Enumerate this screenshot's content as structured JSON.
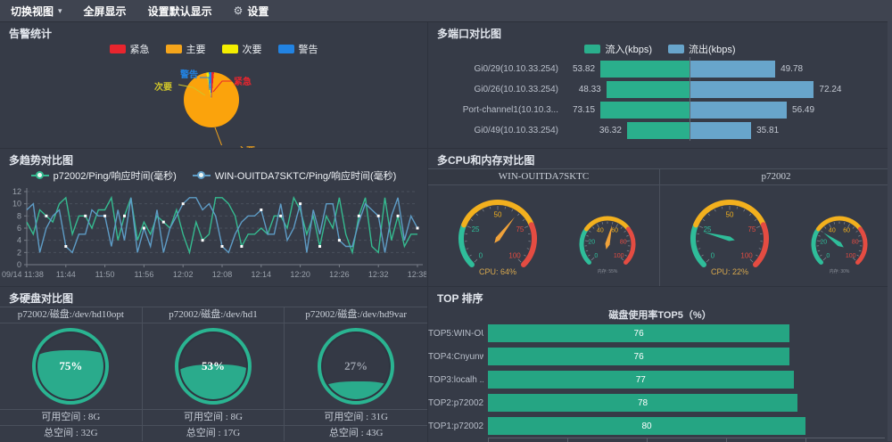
{
  "toolbar": {
    "items": [
      {
        "label": "切换视图",
        "has_caret": true
      },
      {
        "label": "全屏显示"
      },
      {
        "label": "设置默认显示"
      },
      {
        "label": "设置",
        "icon": "gear"
      }
    ]
  },
  "alarm": {
    "title": "告警统计",
    "legend": [
      {
        "label": "紧急",
        "color": "#e9252e"
      },
      {
        "label": "主要",
        "color": "#f5a51b"
      },
      {
        "label": "次要",
        "color": "#f4ee00"
      },
      {
        "label": "警告",
        "color": "#2283e2"
      }
    ],
    "chart_data": {
      "type": "pie",
      "slices": [
        {
          "label": "紧急",
          "color": "#e9252e",
          "pct": 1.5
        },
        {
          "label": "主要",
          "color": "#fba30c",
          "pct": 95.5
        },
        {
          "label": "次要",
          "color": "#f4ee00",
          "pct": 1.5
        },
        {
          "label": "警告",
          "color": "#2283e2",
          "pct": 1.5
        }
      ]
    }
  },
  "ports": {
    "title": "多端口对比图",
    "legend": [
      {
        "label": "流入(kbps)",
        "color": "#2aaf8c"
      },
      {
        "label": "流出(kbps)",
        "color": "#68a5cb"
      }
    ],
    "chart_data": {
      "type": "bar",
      "orientation": "bidirectional-horizontal",
      "series_names": [
        "流入(kbps)",
        "流出(kbps)"
      ],
      "rows": [
        {
          "label": "Gi0/29(10.10.33.254)",
          "in": 53.82,
          "out": 49.78
        },
        {
          "label": "Gi0/26(10.10.33.254)",
          "in": 48.33,
          "out": 72.24
        },
        {
          "label": "Port-channel1(10.10.3...",
          "in": 73.15,
          "out": 56.49
        },
        {
          "label": "Gi0/49(10.10.33.254)",
          "in": 36.32,
          "out": 35.81
        }
      ]
    }
  },
  "trend": {
    "title": "多趋势对比图",
    "chart_data": {
      "type": "line",
      "ylim": [
        0,
        12
      ],
      "yticks": [
        0,
        2,
        4,
        6,
        8,
        10,
        12
      ],
      "xticks": [
        "09/14 11:38",
        "11:44",
        "11:50",
        "11:56",
        "12:02",
        "12:08",
        "12:14",
        "12:20",
        "12:26",
        "12:32",
        "12:38"
      ],
      "series": [
        {
          "name": "p72002/Ping/响应时间(毫秒)",
          "color": "#35bb90",
          "values": [
            7,
            5,
            9,
            8,
            7,
            10,
            11,
            5,
            8,
            8,
            6,
            9,
            9,
            11,
            4,
            8,
            11,
            4,
            7,
            5,
            8,
            7,
            6,
            9,
            5,
            2,
            7,
            4,
            5,
            11,
            11,
            10,
            8,
            3,
            5,
            5,
            6,
            5,
            8,
            8,
            6,
            11,
            9,
            5,
            8,
            3,
            8,
            6,
            11,
            5,
            2,
            8,
            11,
            3,
            2,
            11,
            4,
            8,
            3,
            5,
            5
          ]
        },
        {
          "name": "WIN-OUITDA7SKTC/Ping/响应时间(毫秒)",
          "color": "#5e9cc6",
          "values": [
            9,
            10,
            2,
            6,
            8,
            9,
            3,
            2,
            5,
            5,
            9,
            8,
            8,
            3,
            9,
            4,
            11,
            2,
            6,
            3,
            9,
            2,
            6,
            8,
            10,
            11,
            11,
            9,
            10,
            8,
            3,
            2,
            5,
            7,
            8,
            8,
            9,
            5,
            5,
            10,
            4,
            6,
            10,
            2,
            9,
            5,
            10,
            10,
            4,
            3,
            3,
            7,
            10,
            9,
            8,
            2,
            8,
            11,
            4,
            8,
            6
          ]
        }
      ]
    }
  },
  "cpu": {
    "title": "多CPU和内存对比图",
    "devices": [
      {
        "name": "WIN-OUITDA7SKTC",
        "gauges": [
          {
            "type": "big",
            "value": 64,
            "max": 100,
            "label": "CPU: 64%",
            "label_color": "#d8a84e",
            "needle_color": "#f0a23a",
            "segments": [
              {
                "from": 0,
                "to": 25,
                "color": "#2fbd9a"
              },
              {
                "from": 25,
                "to": 75,
                "color": "#f2b01e"
              },
              {
                "from": 75,
                "to": 100,
                "color": "#e44c42"
              }
            ],
            "tick_labels": [
              {
                "v": 0,
                "color": "#2fbd9a"
              },
              {
                "v": 25,
                "color": "#2fbd9a"
              },
              {
                "v": 50,
                "color": "#f2b01e"
              },
              {
                "v": 75,
                "color": "#e44c42"
              },
              {
                "v": 100,
                "color": "#e44c42"
              }
            ]
          },
          {
            "type": "small",
            "value": 55,
            "max": 100,
            "label": "内存: 55%",
            "label_color": "#8a8f99",
            "needle_color": "#f0a23a",
            "segments": [
              {
                "from": 0,
                "to": 30,
                "color": "#2fbd9a"
              },
              {
                "from": 30,
                "to": 70,
                "color": "#f2b01e"
              },
              {
                "from": 70,
                "to": 100,
                "color": "#e44c42"
              }
            ],
            "tick_labels": [
              {
                "v": 0,
                "color": "#2fbd9a"
              },
              {
                "v": 20,
                "color": "#2fbd9a"
              },
              {
                "v": 40,
                "color": "#f2b01e"
              },
              {
                "v": 60,
                "color": "#f2b01e"
              },
              {
                "v": 80,
                "color": "#e44c42"
              },
              {
                "v": 100,
                "color": "#e44c42"
              }
            ]
          }
        ]
      },
      {
        "name": "p72002",
        "gauges": [
          {
            "type": "big",
            "value": 22,
            "max": 100,
            "label": "CPU: 22%",
            "label_color": "#d8a84e",
            "needle_color": "#2fbd9a",
            "segments": [
              {
                "from": 0,
                "to": 25,
                "color": "#2fbd9a"
              },
              {
                "from": 25,
                "to": 75,
                "color": "#f2b01e"
              },
              {
                "from": 75,
                "to": 100,
                "color": "#e44c42"
              }
            ],
            "tick_labels": [
              {
                "v": 0,
                "color": "#2fbd9a"
              },
              {
                "v": 25,
                "color": "#2fbd9a"
              },
              {
                "v": 50,
                "color": "#f2b01e"
              },
              {
                "v": 75,
                "color": "#e44c42"
              },
              {
                "v": 100,
                "color": "#e44c42"
              }
            ]
          },
          {
            "type": "small",
            "value": 30,
            "max": 100,
            "label": "内存: 30%",
            "label_color": "#8a8f99",
            "needle_color": "#2fbd9a",
            "segments": [
              {
                "from": 0,
                "to": 30,
                "color": "#2fbd9a"
              },
              {
                "from": 30,
                "to": 70,
                "color": "#f2b01e"
              },
              {
                "from": 70,
                "to": 100,
                "color": "#e44c42"
              }
            ],
            "tick_labels": [
              {
                "v": 0,
                "color": "#2fbd9a"
              },
              {
                "v": 20,
                "color": "#2fbd9a"
              },
              {
                "v": 40,
                "color": "#f2b01e"
              },
              {
                "v": 60,
                "color": "#f2b01e"
              },
              {
                "v": 80,
                "color": "#e44c42"
              },
              {
                "v": 100,
                "color": "#e44c42"
              }
            ]
          }
        ]
      }
    ]
  },
  "disks": {
    "title": "多硬盘对比图",
    "items": [
      {
        "header": "p72002/磁盘:/dev/hd10opt",
        "percent": 75,
        "percent_label": "75%",
        "available": "可用空间 : 8G",
        "total": "总空间 : 32G"
      },
      {
        "header": "p72002/磁盘:/dev/hd1",
        "percent": 53,
        "percent_label": "53%",
        "available": "可用空间 : 8G",
        "total": "总空间 : 17G"
      },
      {
        "header": "p72002/磁盘:/dev/hd9var",
        "percent": 27,
        "percent_label": "27%",
        "available": "可用空间 : 31G",
        "total": "总空间 : 43G"
      }
    ]
  },
  "top": {
    "title": "TOP 排序",
    "subtitle": "磁盘使用率TOP5（%）",
    "chart_data": {
      "type": "bar",
      "orientation": "horizontal",
      "xticks": [
        0,
        20,
        40,
        60,
        80
      ],
      "bar_color": "#25a583",
      "rows": [
        {
          "label": "TOP5:WIN-OU ...",
          "value": 76
        },
        {
          "label": "TOP4:Cnyunw ...",
          "value": 76
        },
        {
          "label": "TOP3:localh ...",
          "value": 77
        },
        {
          "label": "TOP2:p72002 ...",
          "value": 78
        },
        {
          "label": "TOP1:p72002 ...",
          "value": 80
        }
      ]
    }
  }
}
